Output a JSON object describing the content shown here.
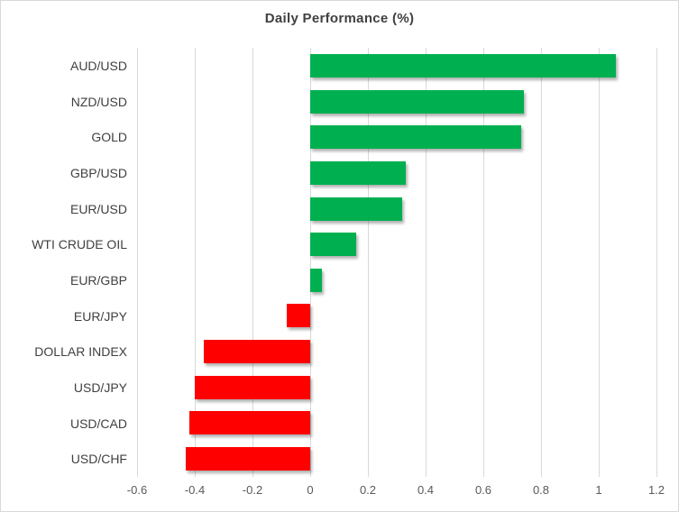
{
  "title": "Daily Performance (%)",
  "colors": {
    "positive_bar": "#00B050",
    "negative_bar": "#FF0000",
    "gridline": "#D9D9D9",
    "frame_border": "#D9D9D9",
    "title_text": "#404040",
    "category_text": "#404040",
    "tick_text": "#595959",
    "background": "#FFFFFF"
  },
  "chart_data": {
    "type": "bar",
    "orientation": "horizontal",
    "title": "Daily Performance (%)",
    "categories": [
      "AUD/USD",
      "NZD/USD",
      "GOLD",
      "GBP/USD",
      "EUR/USD",
      "WTI CRUDE OIL",
      "EUR/GBP",
      "EUR/JPY",
      "DOLLAR INDEX",
      "USD/JPY",
      "USD/CAD",
      "USD/CHF"
    ],
    "values": [
      1.06,
      0.74,
      0.73,
      0.33,
      0.32,
      0.16,
      0.04,
      -0.08,
      -0.37,
      -0.4,
      -0.42,
      -0.43
    ],
    "xlabel": "",
    "ylabel": "",
    "xlim": [
      -0.6,
      1.2
    ],
    "xticks": [
      -0.6,
      -0.4,
      -0.2,
      0,
      0.2,
      0.4,
      0.6,
      0.8,
      1,
      1.2
    ],
    "xtick_labels": [
      "-0.6",
      "-0.4",
      "-0.2",
      "0",
      "0.2",
      "0.4",
      "0.6",
      "0.8",
      "1",
      "1.2"
    ],
    "grid": true,
    "legend": false,
    "bar_shadow": true
  }
}
